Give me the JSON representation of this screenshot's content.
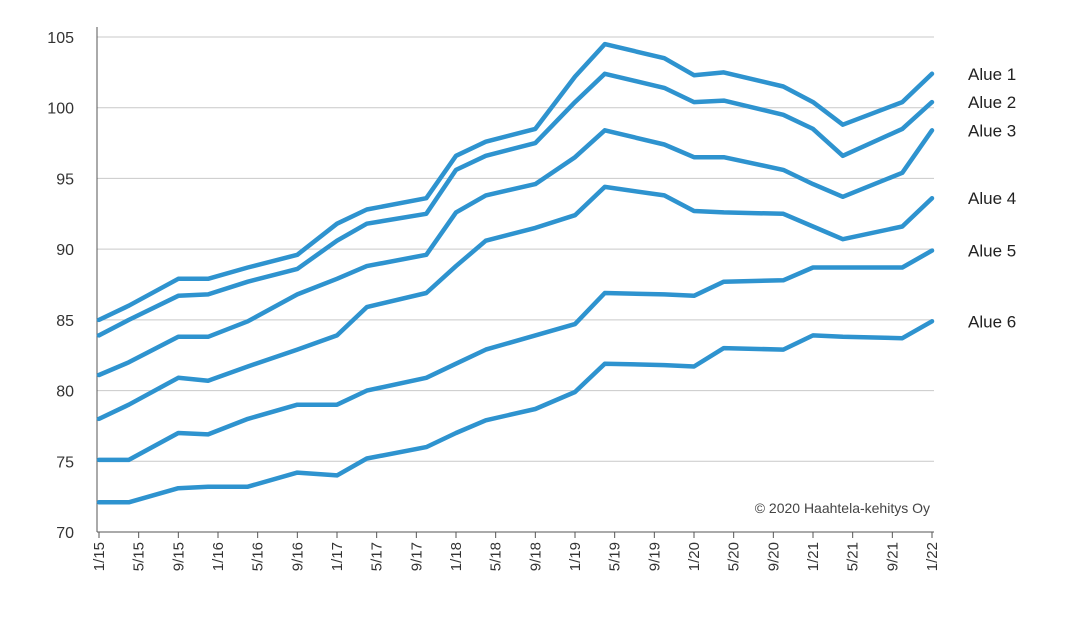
{
  "chart_data": {
    "type": "line",
    "title": "",
    "xlabel": "",
    "ylabel": "",
    "ylim": [
      70,
      105
    ],
    "yticks": [
      70,
      75,
      80,
      85,
      90,
      95,
      100,
      105
    ],
    "grid": true,
    "legend_placement": "right, labels at line ends",
    "line_color": "#2e93cf",
    "copyright": "© 2020 Haahtela-kehitys Oy",
    "x_tick_labels": [
      "1/15",
      "5/15",
      "9/15",
      "1/16",
      "5/16",
      "9/16",
      "1/17",
      "5/17",
      "9/17",
      "1/18",
      "5/18",
      "9/18",
      "1/19",
      "5/19",
      "9/19",
      "1/20",
      "5/20",
      "9/20",
      "1/21",
      "5/21",
      "9/21",
      "1/22"
    ],
    "x": [
      "1/15",
      "4/15",
      "9/15",
      "12/15",
      "4/16",
      "9/16",
      "1/17",
      "4/17",
      "10/17",
      "1/18",
      "4/18",
      "9/18",
      "1/19",
      "4/19",
      "10/19",
      "1/20",
      "4/20",
      "10/20",
      "1/21",
      "4/21",
      "10/21",
      "1/22"
    ],
    "series": [
      {
        "name": "Alue 1",
        "values": [
          85.0,
          86.0,
          87.9,
          87.9,
          88.7,
          89.6,
          91.8,
          92.8,
          93.6,
          96.6,
          97.6,
          98.5,
          102.2,
          104.5,
          103.5,
          102.3,
          102.5,
          101.5,
          100.4,
          98.8,
          100.4,
          102.4
        ]
      },
      {
        "name": "Alue 2",
        "values": [
          83.9,
          85.0,
          86.7,
          86.8,
          87.7,
          88.6,
          90.6,
          91.8,
          92.5,
          95.6,
          96.6,
          97.5,
          100.4,
          102.4,
          101.4,
          100.4,
          100.5,
          99.5,
          98.5,
          96.6,
          98.5,
          100.4
        ]
      },
      {
        "name": "Alue 3",
        "values": [
          81.1,
          82.0,
          83.8,
          83.8,
          84.9,
          86.8,
          87.9,
          88.8,
          89.6,
          92.6,
          93.8,
          94.6,
          96.5,
          98.4,
          97.4,
          96.5,
          96.5,
          95.6,
          94.6,
          93.7,
          95.4,
          98.4
        ]
      },
      {
        "name": "Alue 4",
        "values": [
          78.0,
          79.0,
          80.9,
          80.7,
          81.7,
          82.9,
          83.9,
          85.9,
          86.9,
          88.8,
          90.6,
          91.5,
          92.4,
          94.4,
          93.8,
          92.7,
          92.6,
          92.5,
          91.6,
          90.7,
          91.6,
          93.6
        ]
      },
      {
        "name": "Alue 5",
        "values": [
          75.1,
          75.1,
          77.0,
          76.9,
          78.0,
          79.0,
          79.0,
          80.0,
          80.9,
          81.9,
          82.9,
          83.9,
          84.7,
          86.9,
          86.8,
          86.7,
          87.7,
          87.8,
          88.7,
          88.7,
          88.7,
          89.9
        ]
      },
      {
        "name": "Alue 6",
        "values": [
          72.1,
          72.1,
          73.1,
          73.2,
          73.2,
          74.2,
          74.0,
          75.2,
          76.0,
          77.0,
          77.9,
          78.7,
          79.9,
          81.9,
          81.8,
          81.7,
          83.0,
          82.9,
          83.9,
          83.8,
          83.7,
          84.9
        ]
      }
    ]
  }
}
